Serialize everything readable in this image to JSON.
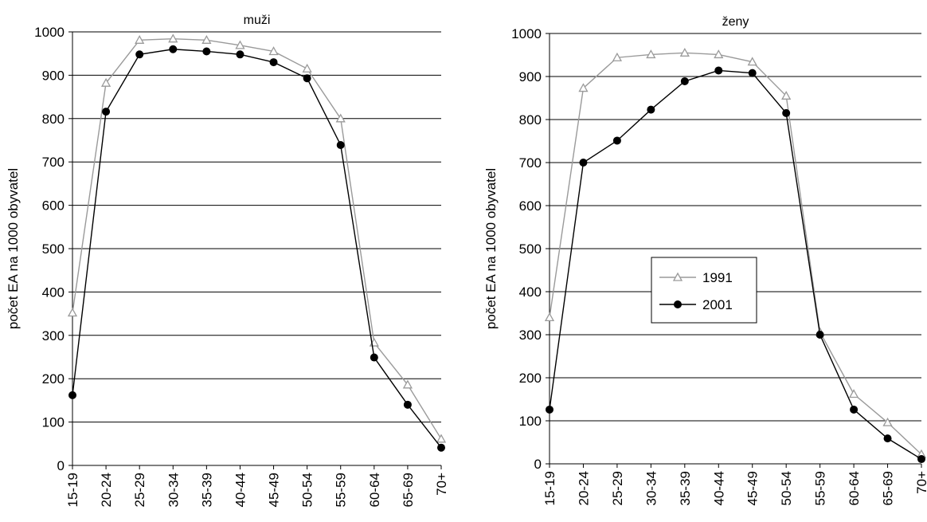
{
  "chart_data": [
    {
      "type": "line",
      "title": "muži",
      "xlabel": "",
      "ylabel": "počet EA na 1000 obyvatel",
      "ylim": [
        0,
        1000
      ],
      "yticks": [
        0,
        100,
        200,
        300,
        400,
        500,
        600,
        700,
        800,
        900,
        1000
      ],
      "grid": true,
      "categories": [
        "15-19",
        "20-24",
        "25-29",
        "30-34",
        "35-39",
        "40-44",
        "45-49",
        "50-54",
        "55-59",
        "60-64",
        "65-69",
        "70+"
      ],
      "series": [
        {
          "name": "1991",
          "color": "#9a9a9a",
          "marker": "triangle-open",
          "values": [
            352,
            882,
            981,
            984,
            981,
            969,
            955,
            915,
            800,
            283,
            186,
            61
          ]
        },
        {
          "name": "2001",
          "color": "#000000",
          "marker": "circle-filled",
          "values": [
            162,
            816,
            948,
            960,
            955,
            948,
            930,
            893,
            739,
            249,
            140,
            41
          ]
        }
      ]
    },
    {
      "type": "line",
      "title": "ženy",
      "xlabel": "",
      "ylabel": "počet EA na 1000 obyvatel",
      "ylim": [
        0,
        1000
      ],
      "yticks": [
        0,
        100,
        200,
        300,
        400,
        500,
        600,
        700,
        800,
        900,
        1000
      ],
      "grid": true,
      "legend": "center",
      "categories": [
        "15-19",
        "20-24",
        "25-29",
        "30-34",
        "35-39",
        "40-44",
        "45-49",
        "50-54",
        "55-59",
        "60-64",
        "65-69",
        "70+"
      ],
      "series": [
        {
          "name": "1991",
          "color": "#9a9a9a",
          "marker": "triangle-open",
          "values": [
            340,
            873,
            944,
            951,
            955,
            951,
            934,
            855,
            306,
            162,
            96,
            22
          ]
        },
        {
          "name": "2001",
          "color": "#000000",
          "marker": "circle-filled",
          "values": [
            126,
            700,
            751,
            823,
            889,
            914,
            908,
            815,
            300,
            126,
            59,
            11
          ]
        }
      ]
    }
  ]
}
